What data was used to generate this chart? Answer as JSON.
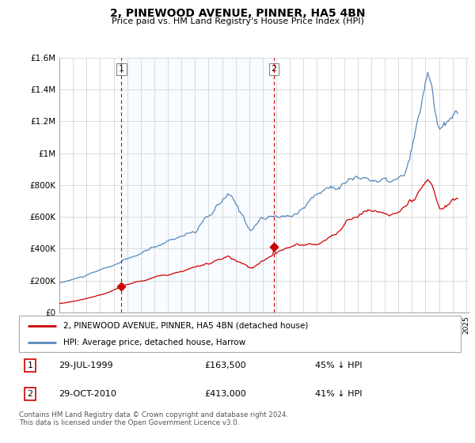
{
  "title": "2, PINEWOOD AVENUE, PINNER, HA5 4BN",
  "subtitle": "Price paid vs. HM Land Registry's House Price Index (HPI)",
  "red_label": "2, PINEWOOD AVENUE, PINNER, HA5 4BN (detached house)",
  "blue_label": "HPI: Average price, detached house, Harrow",
  "footer": "Contains HM Land Registry data © Crown copyright and database right 2024.\nThis data is licensed under the Open Government Licence v3.0.",
  "annotation1": {
    "label": "1",
    "date": "29-JUL-1999",
    "price": "£163,500",
    "pct": "45% ↓ HPI"
  },
  "annotation2": {
    "label": "2",
    "date": "29-OCT-2010",
    "price": "£413,000",
    "pct": "41% ↓ HPI"
  },
  "ylim": [
    0,
    1600000
  ],
  "yticks": [
    0,
    200000,
    400000,
    600000,
    800000,
    1000000,
    1200000,
    1400000,
    1600000
  ],
  "ytick_labels": [
    "£0",
    "£200K",
    "£400K",
    "£600K",
    "£800K",
    "£1M",
    "£1.2M",
    "£1.4M",
    "£1.6M"
  ],
  "red_color": "#cc0000",
  "blue_color": "#5588bb",
  "shade_color": "#ddeeff",
  "point1_x": 1999.58,
  "point1_y": 163500,
  "point2_x": 2010.83,
  "point2_y": 413000,
  "xlim_left": 1995.0,
  "xlim_right": 2025.2
}
